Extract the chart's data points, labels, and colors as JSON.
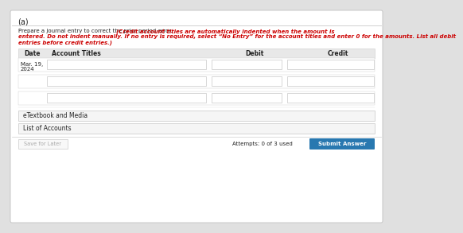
{
  "title_label": "(a)",
  "instruction_black": "Prepare a journal entry to correct the prior period error. ",
  "instruction_red_line1": "(Credit account titles are automatically indented when the amount is",
  "instruction_red_line2": "entered. Do not indent manually. If no entry is required, select “No Entry” for the account titles and enter 0 for the amounts. List all debit",
  "instruction_red_line3": "entries before credit entries.)",
  "col_headers": [
    "Date",
    "Account Titles",
    "Debit",
    "Credit"
  ],
  "date_label_line1": "Mar. 19,",
  "date_label_line2": "2024",
  "etextbook_label": "eTextbook and Media",
  "list_accounts_label": "List of Accounts",
  "save_label": "Save for Later",
  "attempts_label": "Attempts: 0 of 3 used",
  "submit_label": "Submit Answer",
  "bg_outer": "#e0e0e0",
  "bg_inner": "#ffffff",
  "bg_header_row": "#e8e8e8",
  "bg_button_submit": "#2878b0",
  "text_color_black": "#222222",
  "text_color_red": "#cc0000",
  "text_color_submit": "#ffffff",
  "border_color": "#cccccc",
  "input_bg": "#ffffff",
  "save_border": "#cccccc",
  "save_text": "#aaaaaa"
}
